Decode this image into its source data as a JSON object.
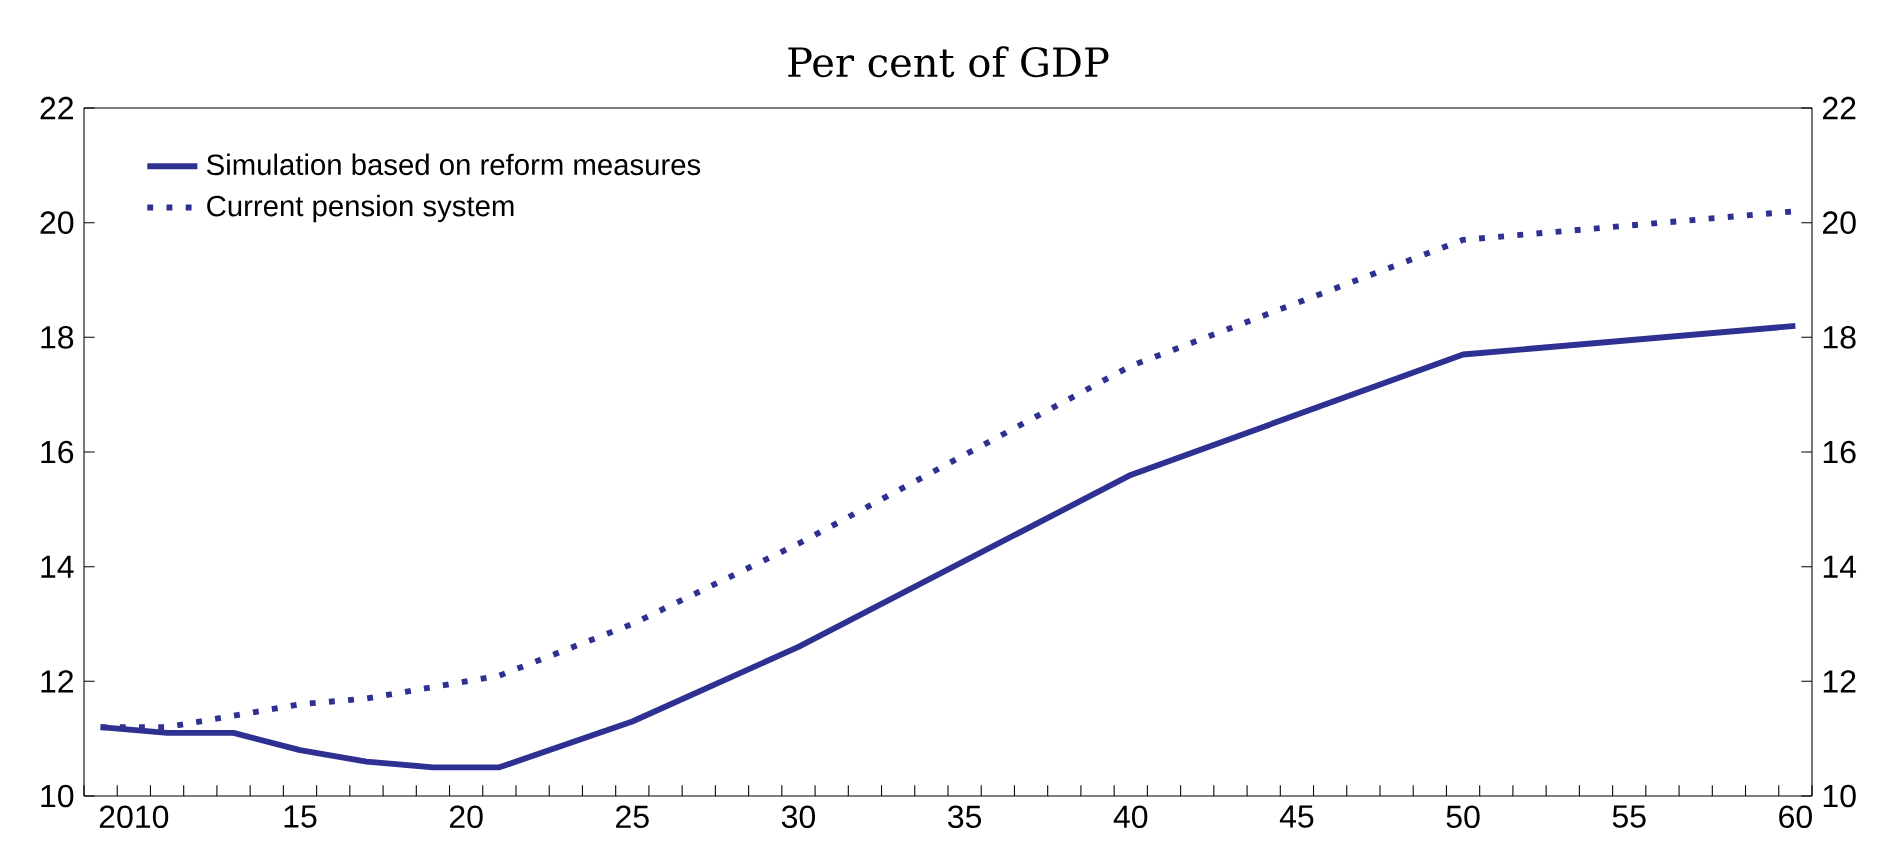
{
  "chart_data": {
    "type": "line",
    "title": "Per cent of GDP",
    "legend": "top left",
    "xlim": [
      2008.5,
      2060.5
    ],
    "ylim": [
      10,
      22
    ],
    "y2lim": [
      10,
      22
    ],
    "xticks": [
      {
        "value": 2010,
        "label": "2010"
      },
      {
        "value": 2015,
        "label": "15"
      },
      {
        "value": 2020,
        "label": "20"
      },
      {
        "value": 2025,
        "label": "25"
      },
      {
        "value": 2030,
        "label": "30"
      },
      {
        "value": 2035,
        "label": "35"
      },
      {
        "value": 2040,
        "label": "40"
      },
      {
        "value": 2045,
        "label": "45"
      },
      {
        "value": 2050,
        "label": "50"
      },
      {
        "value": 2055,
        "label": "55"
      },
      {
        "value": 2060,
        "label": "60"
      }
    ],
    "yticks": [
      10,
      12,
      14,
      16,
      18,
      20,
      22
    ],
    "y2ticks": [
      10,
      12,
      14,
      16,
      18,
      20,
      22
    ],
    "series": [
      {
        "name": "Simulation based on reform measures",
        "color": "#2e3192",
        "line_style": "solid",
        "x": [
          2009,
          2011,
          2013,
          2015,
          2017,
          2019,
          2021,
          2025,
          2030,
          2040,
          2050,
          2060
        ],
        "values": [
          11.2,
          11.1,
          11.1,
          10.8,
          10.6,
          10.5,
          10.5,
          11.3,
          12.6,
          15.6,
          17.7,
          18.2
        ]
      },
      {
        "name": "Current pension system",
        "color": "#2e3192",
        "line_style": "dotted",
        "x": [
          2009,
          2011,
          2013,
          2015,
          2017,
          2021,
          2025,
          2030,
          2040,
          2050,
          2060
        ],
        "values": [
          11.2,
          11.2,
          11.4,
          11.6,
          11.7,
          12.1,
          13.0,
          14.4,
          17.5,
          19.7,
          20.2
        ]
      }
    ]
  }
}
